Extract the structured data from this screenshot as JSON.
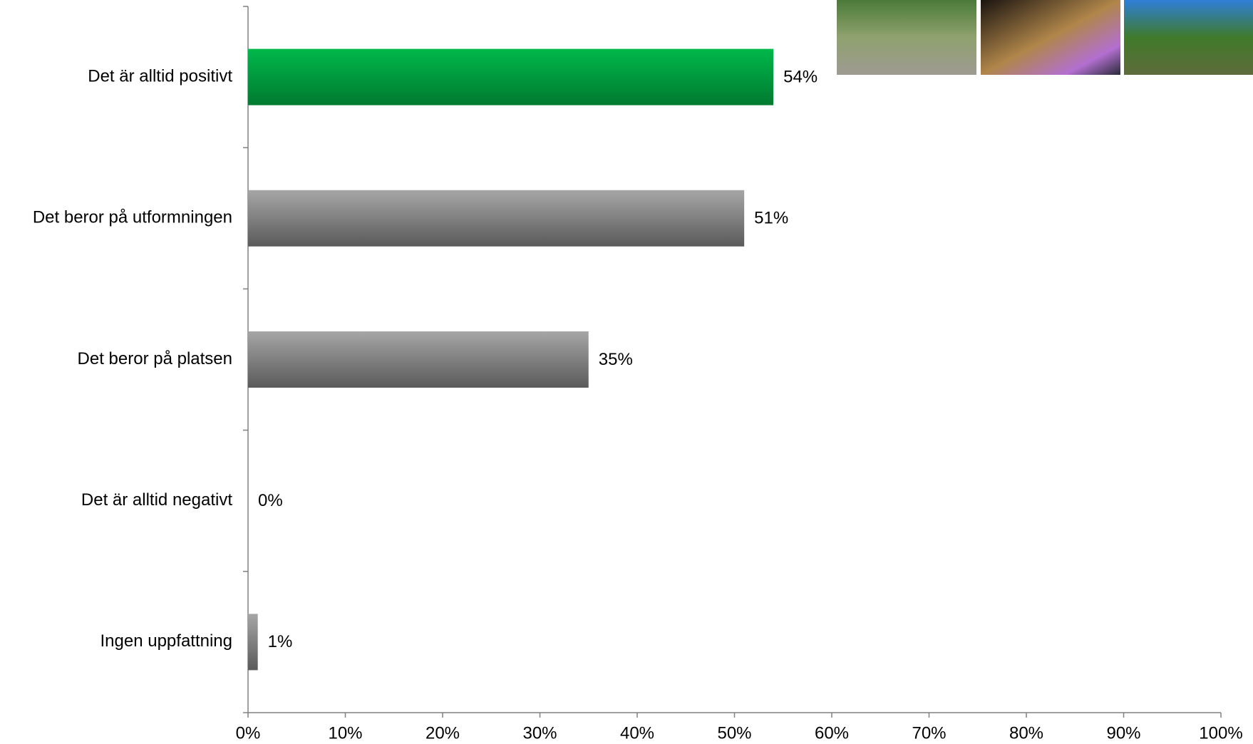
{
  "chart_data": {
    "type": "bar",
    "orientation": "horizontal",
    "categories": [
      "Det är alltid positivt",
      "Det beror på utformningen",
      "Det beror på platsen",
      "Det är alltid negativt",
      "Ingen uppfattning"
    ],
    "values": [
      54,
      51,
      35,
      0,
      1
    ],
    "value_labels": [
      "54%",
      "51%",
      "35%",
      "0%",
      "1%"
    ],
    "colors": [
      "#0a9e3c",
      "#7f7f7f",
      "#7f7f7f",
      "#7f7f7f",
      "#7f7f7f"
    ],
    "xlim": [
      0,
      100
    ],
    "xticks": [
      {
        "value": 0,
        "label": "0%"
      },
      {
        "value": 10,
        "label": "10%"
      },
      {
        "value": 20,
        "label": "20%"
      },
      {
        "value": 30,
        "label": "30%"
      },
      {
        "value": 40,
        "label": "40%"
      },
      {
        "value": 50,
        "label": "50%"
      },
      {
        "value": 60,
        "label": "60%"
      },
      {
        "value": 70,
        "label": "70%"
      },
      {
        "value": 80,
        "label": "80%"
      },
      {
        "value": 90,
        "label": "90%"
      },
      {
        "value": 100,
        "label": "100%"
      }
    ],
    "grid": false
  }
}
